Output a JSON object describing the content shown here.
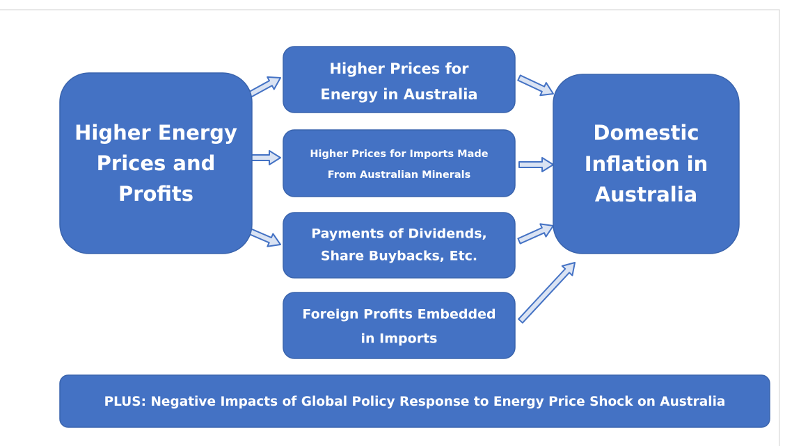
{
  "nodes": [
    {
      "lines": [
        "Higher Energy",
        "Prices and",
        "Profits"
      ]
    },
    {
      "lines": [
        "Higher Prices for",
        "Energy in Australia"
      ]
    },
    {
      "lines": [
        "Higher Prices for Imports Made",
        "From Australian Minerals"
      ]
    },
    {
      "lines": [
        "Payments of Dividends,",
        "Share Buybacks, Etc."
      ]
    },
    {
      "lines": [
        "Foreign Profits Embedded",
        "in Imports"
      ]
    },
    {
      "lines": [
        "Domestic",
        "Inflation in",
        "Australia"
      ]
    },
    {
      "lines": [
        "PLUS: Negative Impacts of Global Policy Response to Energy Price Shock on Australia"
      ]
    }
  ]
}
